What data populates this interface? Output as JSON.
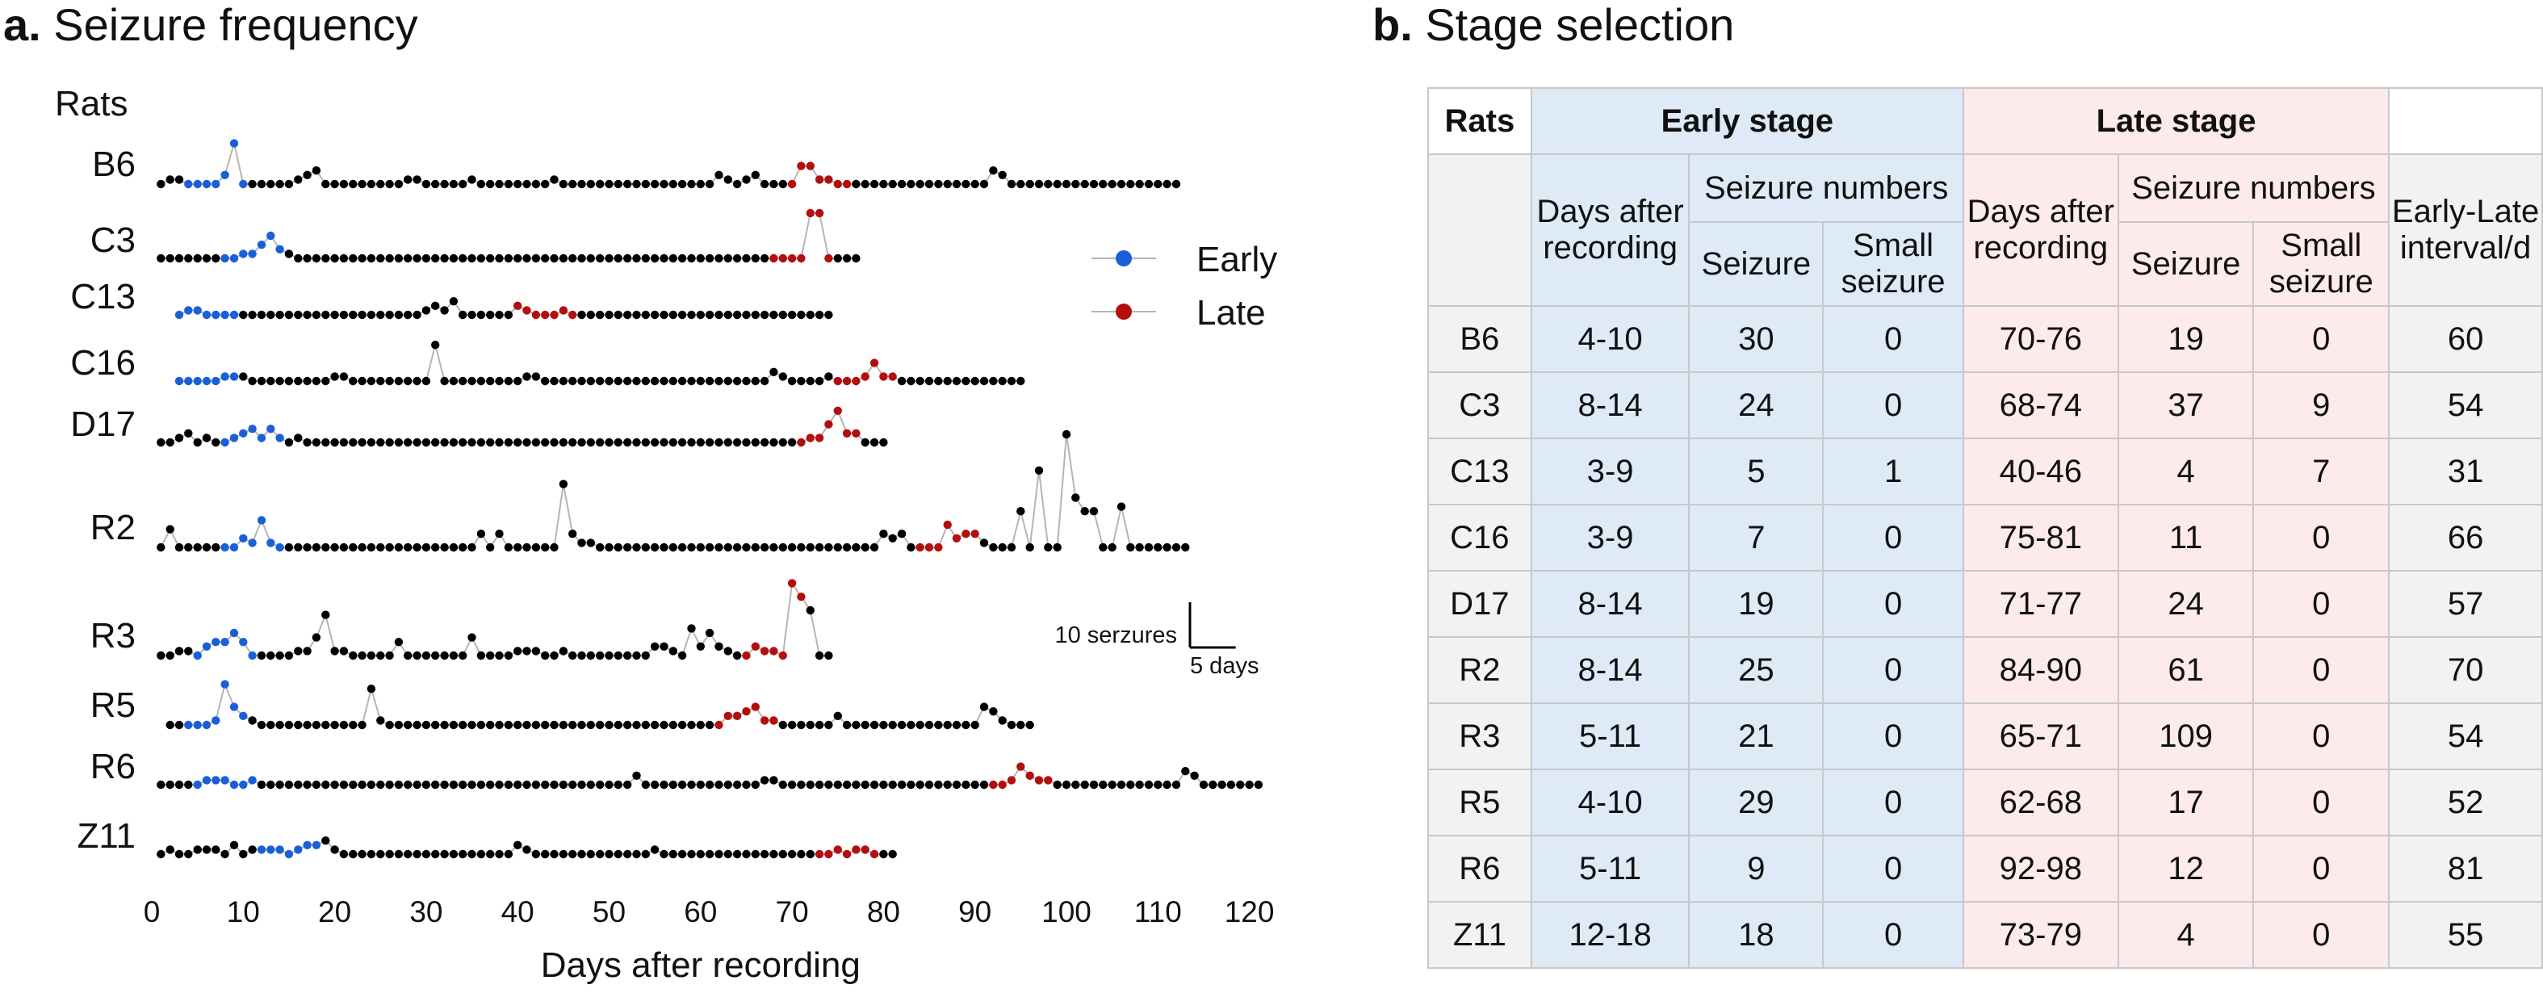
{
  "panel_a": {
    "letter": "a.",
    "title": "Seizure frequency"
  },
  "panel_b": {
    "letter": "b.",
    "title": "Stage selection"
  },
  "colors": {
    "early": "#1a5fd8",
    "late": "#b40f0f",
    "other": "#000000",
    "line": "#b5b5b5",
    "early_bg": "#deeaf6",
    "late_bg": "#fdeaea",
    "grey_bg": "#f2f2f2"
  },
  "chart_data": {
    "type": "line",
    "title": "Seizure frequency",
    "xlabel": "Days after recording",
    "ylabel_header": "Rats",
    "xlim": [
      0,
      122
    ],
    "xticks": [
      0,
      10,
      20,
      30,
      40,
      50,
      60,
      70,
      80,
      90,
      100,
      110,
      120
    ],
    "legend": {
      "position": "right",
      "entries": [
        {
          "name": "Early",
          "color": "#1a5fd8"
        },
        {
          "name": "Late",
          "color": "#b40f0f"
        }
      ]
    },
    "scale_bar": {
      "y_label": "10 serzures",
      "x_label": "5 days",
      "y_value": 10,
      "x_value": 5
    },
    "series": [
      {
        "name": "B6",
        "start_day": 1,
        "end_day": 112,
        "early": [
          4,
          10
        ],
        "late": [
          70,
          76
        ],
        "points": [
          [
            2,
            1
          ],
          [
            3,
            1
          ],
          [
            4,
            0
          ],
          [
            5,
            0
          ],
          [
            6,
            0
          ],
          [
            7,
            0
          ],
          [
            8,
            2
          ],
          [
            9,
            9
          ],
          [
            10,
            0
          ],
          [
            11,
            0
          ],
          [
            12,
            0
          ],
          [
            16,
            1
          ],
          [
            17,
            2
          ],
          [
            18,
            3
          ],
          [
            28,
            1
          ],
          [
            29,
            1
          ],
          [
            35,
            1
          ],
          [
            44,
            1
          ],
          [
            62,
            2
          ],
          [
            63,
            1
          ],
          [
            65,
            1
          ],
          [
            66,
            2
          ],
          [
            71,
            4
          ],
          [
            72,
            4
          ],
          [
            73,
            1
          ],
          [
            74,
            1
          ],
          [
            92,
            3
          ],
          [
            93,
            2
          ]
        ]
      },
      {
        "name": "C3",
        "start_day": 1,
        "end_day": 77,
        "early": [
          8,
          14
        ],
        "late": [
          68,
          74
        ],
        "points": [
          [
            10,
            1
          ],
          [
            11,
            1
          ],
          [
            12,
            3
          ],
          [
            13,
            5
          ],
          [
            14,
            2
          ],
          [
            15,
            1
          ],
          [
            72,
            10
          ],
          [
            73,
            10
          ]
        ]
      },
      {
        "name": "C13",
        "start_day": 3,
        "end_day": 74,
        "early": [
          3,
          9
        ],
        "late": [
          40,
          46
        ],
        "points": [
          [
            4,
            1
          ],
          [
            5,
            1
          ],
          [
            30,
            1
          ],
          [
            31,
            2
          ],
          [
            32,
            1
          ],
          [
            33,
            3
          ],
          [
            40,
            2
          ],
          [
            41,
            1
          ],
          [
            45,
            1
          ]
        ]
      },
      {
        "name": "C16",
        "start_day": 3,
        "end_day": 95,
        "early": [
          3,
          9
        ],
        "late": [
          75,
          81
        ],
        "points": [
          [
            8,
            1
          ],
          [
            9,
            1
          ],
          [
            10,
            1
          ],
          [
            20,
            1
          ],
          [
            21,
            1
          ],
          [
            31,
            8
          ],
          [
            41,
            1
          ],
          [
            42,
            1
          ],
          [
            68,
            2
          ],
          [
            69,
            1
          ],
          [
            74,
            1
          ],
          [
            78,
            1
          ],
          [
            79,
            4
          ],
          [
            80,
            1
          ],
          [
            81,
            1
          ]
        ]
      },
      {
        "name": "D17",
        "start_day": 1,
        "end_day": 80,
        "early": [
          8,
          14
        ],
        "late": [
          71,
          77
        ],
        "points": [
          [
            3,
            1
          ],
          [
            4,
            2
          ],
          [
            6,
            1
          ],
          [
            9,
            1
          ],
          [
            10,
            2
          ],
          [
            11,
            3
          ],
          [
            12,
            1
          ],
          [
            13,
            3
          ],
          [
            14,
            1
          ],
          [
            16,
            1
          ],
          [
            72,
            1
          ],
          [
            73,
            1
          ],
          [
            74,
            4
          ],
          [
            75,
            7
          ],
          [
            76,
            2
          ],
          [
            77,
            2
          ]
        ]
      },
      {
        "name": "R2",
        "start_day": 1,
        "end_day": 113,
        "early": [
          8,
          14
        ],
        "late": [
          84,
          90
        ],
        "points": [
          [
            2,
            4
          ],
          [
            10,
            2
          ],
          [
            11,
            1
          ],
          [
            12,
            6
          ],
          [
            13,
            1
          ],
          [
            36,
            3
          ],
          [
            38,
            3
          ],
          [
            45,
            14
          ],
          [
            46,
            3
          ],
          [
            47,
            1
          ],
          [
            48,
            1
          ],
          [
            80,
            3
          ],
          [
            81,
            2
          ],
          [
            82,
            3
          ],
          [
            87,
            5
          ],
          [
            88,
            2
          ],
          [
            89,
            3
          ],
          [
            90,
            3
          ],
          [
            91,
            1
          ],
          [
            95,
            8
          ],
          [
            97,
            17
          ],
          [
            100,
            25
          ],
          [
            101,
            11
          ],
          [
            102,
            8
          ],
          [
            103,
            8
          ],
          [
            106,
            9
          ]
        ]
      },
      {
        "name": "R3",
        "start_day": 1,
        "end_day": 74,
        "early": [
          5,
          11
        ],
        "late": [
          65,
          71
        ],
        "points": [
          [
            3,
            1
          ],
          [
            4,
            1
          ],
          [
            5,
            0
          ],
          [
            6,
            2
          ],
          [
            7,
            3
          ],
          [
            8,
            3
          ],
          [
            9,
            5
          ],
          [
            10,
            3
          ],
          [
            16,
            1
          ],
          [
            17,
            1
          ],
          [
            18,
            4
          ],
          [
            19,
            9
          ],
          [
            20,
            1
          ],
          [
            21,
            1
          ],
          [
            27,
            3
          ],
          [
            35,
            4
          ],
          [
            40,
            1
          ],
          [
            41,
            1
          ],
          [
            42,
            1
          ],
          [
            45,
            1
          ],
          [
            55,
            2
          ],
          [
            56,
            2
          ],
          [
            57,
            1
          ],
          [
            59,
            6
          ],
          [
            60,
            2
          ],
          [
            61,
            5
          ],
          [
            62,
            2
          ],
          [
            63,
            1
          ],
          [
            66,
            2
          ],
          [
            67,
            1
          ],
          [
            68,
            1
          ],
          [
            70,
            16
          ],
          [
            71,
            13
          ],
          [
            72,
            10
          ]
        ]
      },
      {
        "name": "R5",
        "start_day": 2,
        "end_day": 96,
        "early": [
          4,
          10
        ],
        "late": [
          62,
          68
        ],
        "points": [
          [
            7,
            1
          ],
          [
            8,
            9
          ],
          [
            9,
            4
          ],
          [
            10,
            2
          ],
          [
            11,
            1
          ],
          [
            24,
            8
          ],
          [
            25,
            1
          ],
          [
            63,
            2
          ],
          [
            64,
            2
          ],
          [
            65,
            3
          ],
          [
            66,
            4
          ],
          [
            67,
            1
          ],
          [
            68,
            1
          ],
          [
            75,
            2
          ],
          [
            91,
            4
          ],
          [
            92,
            3
          ],
          [
            93,
            1
          ]
        ]
      },
      {
        "name": "R6",
        "start_day": 1,
        "end_day": 121,
        "early": [
          5,
          11
        ],
        "late": [
          92,
          98
        ],
        "points": [
          [
            6,
            1
          ],
          [
            7,
            1
          ],
          [
            8,
            1
          ],
          [
            11,
            1
          ],
          [
            53,
            2
          ],
          [
            67,
            1
          ],
          [
            68,
            1
          ],
          [
            94,
            1
          ],
          [
            95,
            4
          ],
          [
            96,
            2
          ],
          [
            97,
            1
          ],
          [
            98,
            1
          ],
          [
            113,
            3
          ],
          [
            114,
            2
          ]
        ]
      },
      {
        "name": "Z11",
        "start_day": 1,
        "end_day": 81,
        "early": [
          12,
          18
        ],
        "late": [
          73,
          79
        ],
        "points": [
          [
            2,
            1
          ],
          [
            5,
            1
          ],
          [
            6,
            1
          ],
          [
            7,
            1
          ],
          [
            9,
            2
          ],
          [
            11,
            1
          ],
          [
            12,
            1
          ],
          [
            13,
            1
          ],
          [
            14,
            1
          ],
          [
            16,
            1
          ],
          [
            17,
            2
          ],
          [
            18,
            2
          ],
          [
            19,
            3
          ],
          [
            20,
            1
          ],
          [
            40,
            2
          ],
          [
            41,
            1
          ],
          [
            55,
            1
          ],
          [
            75,
            1
          ],
          [
            77,
            1
          ],
          [
            78,
            1
          ]
        ]
      }
    ]
  },
  "table": {
    "headers": {
      "rats": "Rats",
      "early_stage": "Early stage",
      "late_stage": "Late stage",
      "days_after_recording": "Days after recording",
      "seizure_numbers": "Seizure numbers",
      "seizure": "Seizure",
      "small_seizure": "Small seizure",
      "interval": "Early-Late interval/d"
    },
    "rows": [
      {
        "rat": "B6",
        "early_days": "4-10",
        "early_seizure": "30",
        "early_small": "0",
        "late_days": "70-76",
        "late_seizure": "19",
        "late_small": "0",
        "interval": "60"
      },
      {
        "rat": "C3",
        "early_days": "8-14",
        "early_seizure": "24",
        "early_small": "0",
        "late_days": "68-74",
        "late_seizure": "37",
        "late_small": "9",
        "interval": "54"
      },
      {
        "rat": "C13",
        "early_days": "3-9",
        "early_seizure": "5",
        "early_small": "1",
        "late_days": "40-46",
        "late_seizure": "4",
        "late_small": "7",
        "interval": "31"
      },
      {
        "rat": "C16",
        "early_days": "3-9",
        "early_seizure": "7",
        "early_small": "0",
        "late_days": "75-81",
        "late_seizure": "11",
        "late_small": "0",
        "interval": "66"
      },
      {
        "rat": "D17",
        "early_days": "8-14",
        "early_seizure": "19",
        "early_small": "0",
        "late_days": "71-77",
        "late_seizure": "24",
        "late_small": "0",
        "interval": "57"
      },
      {
        "rat": "R2",
        "early_days": "8-14",
        "early_seizure": "25",
        "early_small": "0",
        "late_days": "84-90",
        "late_seizure": "61",
        "late_small": "0",
        "interval": "70"
      },
      {
        "rat": "R3",
        "early_days": "5-11",
        "early_seizure": "21",
        "early_small": "0",
        "late_days": "65-71",
        "late_seizure": "109",
        "late_small": "0",
        "interval": "54"
      },
      {
        "rat": "R5",
        "early_days": "4-10",
        "early_seizure": "29",
        "early_small": "0",
        "late_days": "62-68",
        "late_seizure": "17",
        "late_small": "0",
        "interval": "52"
      },
      {
        "rat": "R6",
        "early_days": "5-11",
        "early_seizure": "9",
        "early_small": "0",
        "late_days": "92-98",
        "late_seizure": "12",
        "late_small": "0",
        "interval": "81"
      },
      {
        "rat": "Z11",
        "early_days": "12-18",
        "early_seizure": "18",
        "early_small": "0",
        "late_days": "73-79",
        "late_seizure": "4",
        "late_small": "0",
        "interval": "55"
      }
    ]
  }
}
